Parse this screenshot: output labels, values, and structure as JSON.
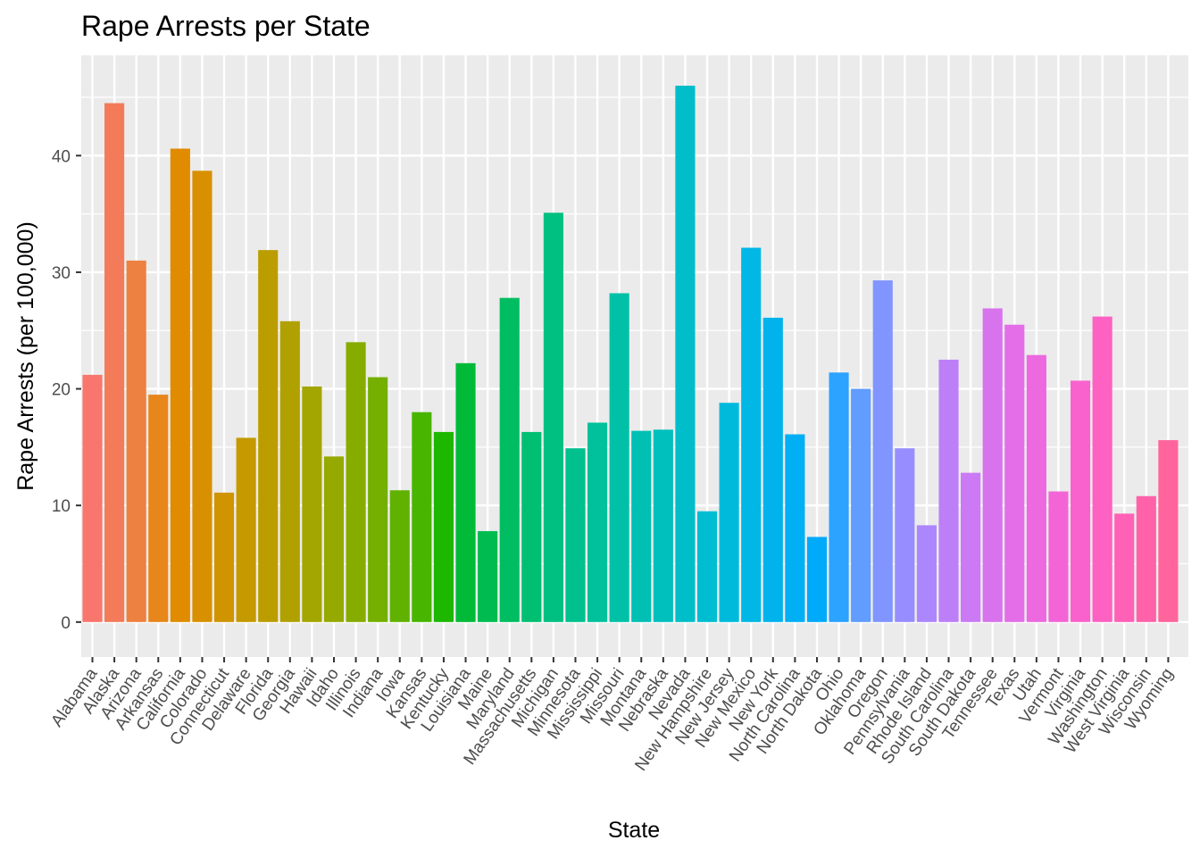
{
  "chart_data": {
    "type": "bar",
    "title": "Rape Arrests per State",
    "xlabel": "State",
    "ylabel": "Rape Arrests (per 100,000)",
    "ylim": [
      -3.0,
      48.6
    ],
    "yticks": [
      0,
      10,
      20,
      30,
      40
    ],
    "grid": true,
    "legend": "none",
    "categories": [
      "Alabama",
      "Alaska",
      "Arizona",
      "Arkansas",
      "California",
      "Colorado",
      "Connecticut",
      "Delaware",
      "Florida",
      "Georgia",
      "Hawaii",
      "Idaho",
      "Illinois",
      "Indiana",
      "Iowa",
      "Kansas",
      "Kentucky",
      "Louisiana",
      "Maine",
      "Maryland",
      "Massachusetts",
      "Michigan",
      "Minnesota",
      "Mississippi",
      "Missouri",
      "Montana",
      "Nebraska",
      "Nevada",
      "New Hampshire",
      "New Jersey",
      "New Mexico",
      "New York",
      "North Carolina",
      "North Dakota",
      "Ohio",
      "Oklahoma",
      "Oregon",
      "Pennsylvania",
      "Rhode Island",
      "South Carolina",
      "South Dakota",
      "Tennessee",
      "Texas",
      "Utah",
      "Vermont",
      "Virginia",
      "Washington",
      "West Virginia",
      "Wisconsin",
      "Wyoming"
    ],
    "values": [
      21.2,
      44.5,
      31.0,
      19.5,
      40.6,
      38.7,
      11.1,
      15.8,
      31.9,
      25.8,
      20.2,
      14.2,
      24.0,
      21.0,
      11.3,
      18.0,
      16.3,
      22.2,
      7.8,
      27.8,
      16.3,
      35.1,
      14.9,
      17.1,
      28.2,
      16.4,
      16.5,
      46.0,
      9.5,
      18.8,
      32.1,
      26.1,
      16.1,
      7.3,
      21.4,
      20.0,
      29.3,
      14.9,
      8.3,
      22.5,
      12.8,
      26.9,
      25.5,
      22.9,
      11.2,
      20.7,
      26.2,
      9.3,
      10.8,
      15.6
    ]
  }
}
